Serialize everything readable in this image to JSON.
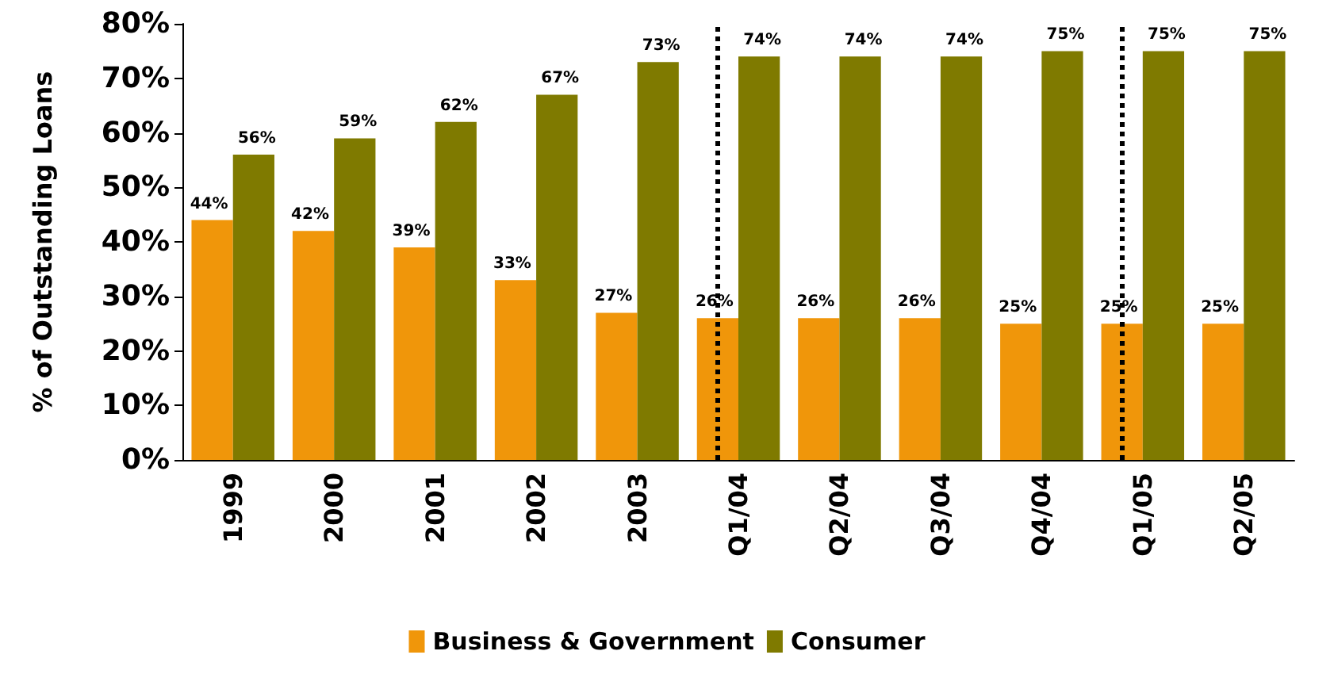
{
  "chart_data": {
    "type": "bar",
    "ylabel": "% of Outstanding Loans",
    "categories": [
      "1999",
      "2000",
      "2001",
      "2002",
      "2003",
      "Q1/04",
      "Q2/04",
      "Q3/04",
      "Q4/04",
      "Q1/05",
      "Q2/05"
    ],
    "series": [
      {
        "name": "Business & Government",
        "color": "#f0960a",
        "values": [
          44,
          42,
          39,
          33,
          27,
          26,
          26,
          26,
          25,
          25,
          25
        ],
        "value_labels": [
          "44%",
          "42%",
          "39%",
          "33%",
          "27%",
          "26%",
          "26%",
          "26%",
          "25%",
          "25%",
          "25%"
        ]
      },
      {
        "name": "Consumer",
        "color": "#7f7a00",
        "values": [
          56,
          59,
          62,
          67,
          73,
          74,
          74,
          74,
          75,
          75,
          75
        ],
        "value_labels": [
          "56%",
          "59%",
          "62%",
          "67%",
          "73%",
          "74%",
          "74%",
          "74%",
          "75%",
          "75%",
          "75%"
        ]
      }
    ],
    "ylim": [
      0,
      80
    ],
    "yticks": [
      {
        "value": 0,
        "label": "0%"
      },
      {
        "value": 10,
        "label": "10%"
      },
      {
        "value": 20,
        "label": "20%"
      },
      {
        "value": 30,
        "label": "30%"
      },
      {
        "value": 40,
        "label": "40%"
      },
      {
        "value": 50,
        "label": "50%"
      },
      {
        "value": 60,
        "label": "60%"
      },
      {
        "value": 70,
        "label": "70%"
      },
      {
        "value": 80,
        "label": "80%"
      }
    ],
    "ref_lines": [
      {
        "axis": "x",
        "value": "Q1/04",
        "line_style": "dotted",
        "color": "#000000"
      },
      {
        "axis": "x",
        "value": "Q1/05",
        "line_style": "dotted",
        "color": "#000000"
      }
    ],
    "grid": false,
    "legend": "bottom"
  }
}
